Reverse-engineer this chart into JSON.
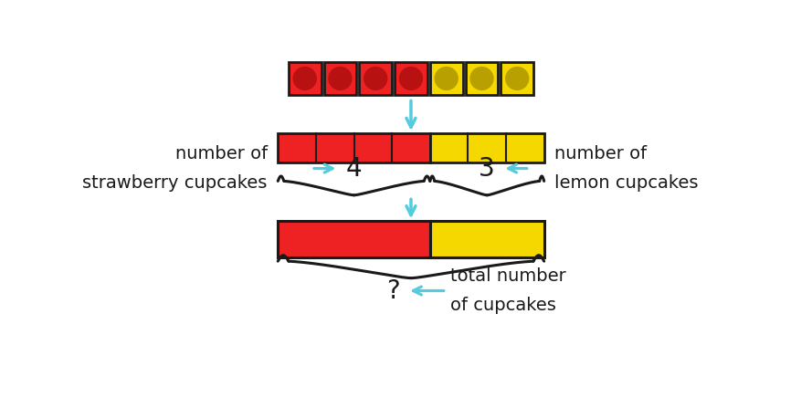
{
  "bg_color": "#ffffff",
  "red_color": "#ee2222",
  "red_dark": "#b81111",
  "yellow_color": "#f5d800",
  "yellow_dark": "#b8a000",
  "arrow_color": "#55ccdd",
  "black": "#1a1a1a",
  "n_red": 4,
  "n_yellow": 3,
  "label_left_line1": "number of",
  "label_left_line2": "strawberry cupcakes",
  "label_right_line1": "number of",
  "label_right_line2": "lemon cupcakes",
  "label_bottom_line1": "total number",
  "label_bottom_line2": "of cupcakes",
  "num_left": "4",
  "num_right": "3",
  "num_bottom": "?",
  "font_size": 14,
  "font_size_num": 20
}
